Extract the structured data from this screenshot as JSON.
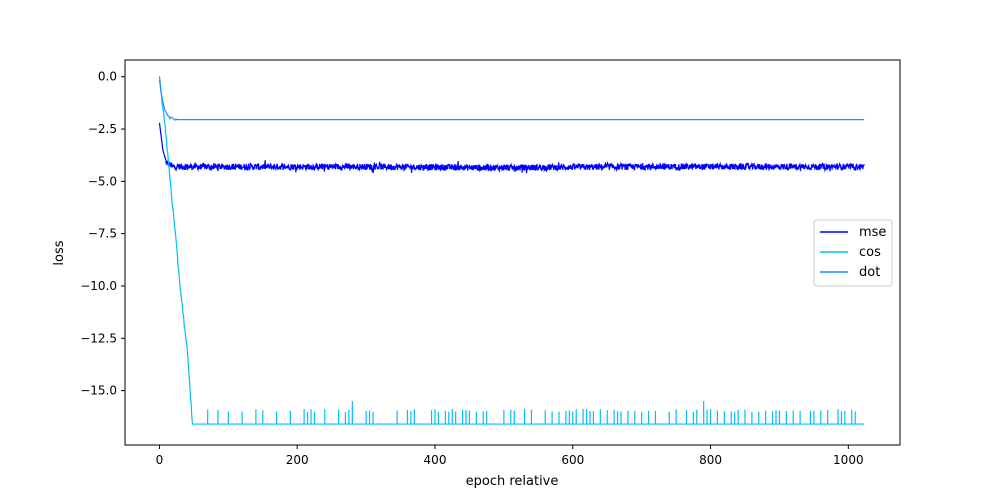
{
  "chart_data": {
    "type": "line",
    "title": "",
    "xlabel": "epoch relative",
    "ylabel": "loss",
    "xlim": [
      -50,
      1075
    ],
    "ylim": [
      -17.6,
      0.8
    ],
    "xticks": [
      0,
      200,
      400,
      600,
      800,
      1000
    ],
    "xtick_labels": [
      "0",
      "200",
      "400",
      "600",
      "800",
      "1000"
    ],
    "yticks": [
      0.0,
      -2.5,
      -5.0,
      -7.5,
      -10.0,
      -12.5,
      -15.0
    ],
    "ytick_labels": [
      "0.0",
      "−2.5",
      "−5.0",
      "−7.5",
      "−10.0",
      "−12.5",
      "−15.0"
    ],
    "grid": false,
    "legend_position": "center-right",
    "series": [
      {
        "name": "mse",
        "color": "#0000ff",
        "description_points": [
          [
            0,
            -2.2
          ],
          [
            5,
            -3.5
          ],
          [
            10,
            -4.1
          ],
          [
            20,
            -4.3
          ],
          [
            100,
            -4.3
          ],
          [
            300,
            -4.3
          ],
          [
            500,
            -4.35
          ],
          [
            700,
            -4.3
          ],
          [
            900,
            -4.3
          ],
          [
            1023,
            -4.3
          ]
        ],
        "noise_amplitude": 0.15
      },
      {
        "name": "cos",
        "color": "#00bfff",
        "description_points": [
          [
            0,
            0.0
          ],
          [
            10,
            -3.0
          ],
          [
            20,
            -6.5
          ],
          [
            30,
            -10.0
          ],
          [
            40,
            -13.0
          ],
          [
            48,
            -16.6
          ],
          [
            1023,
            -16.6
          ]
        ],
        "floor": -16.6,
        "spike_level": -15.95,
        "spike_max": -15.5,
        "spike_epochs": [
          70,
          85,
          100,
          120,
          140,
          150,
          170,
          190,
          210,
          215,
          220,
          225,
          240,
          260,
          270,
          275,
          280,
          300,
          305,
          310,
          345,
          360,
          365,
          370,
          395,
          400,
          405,
          415,
          420,
          425,
          430,
          440,
          445,
          450,
          460,
          470,
          475,
          500,
          510,
          515,
          530,
          540,
          560,
          570,
          580,
          590,
          595,
          600,
          605,
          615,
          620,
          625,
          630,
          640,
          650,
          660,
          665,
          670,
          680,
          690,
          700,
          710,
          720,
          740,
          750,
          765,
          775,
          780,
          790,
          795,
          800,
          810,
          820,
          830,
          835,
          840,
          850,
          860,
          870,
          880,
          890,
          895,
          900,
          910,
          920,
          930,
          945,
          950,
          960,
          970,
          985,
          990,
          995,
          1005,
          1010
        ]
      },
      {
        "name": "dot",
        "color": "#1a8cff",
        "description_points": [
          [
            0,
            0.0
          ],
          [
            3,
            -0.9
          ],
          [
            8,
            -1.6
          ],
          [
            15,
            -1.95
          ],
          [
            25,
            -2.05
          ],
          [
            100,
            -2.05
          ],
          [
            500,
            -2.05
          ],
          [
            1023,
            -2.05
          ]
        ]
      }
    ]
  }
}
